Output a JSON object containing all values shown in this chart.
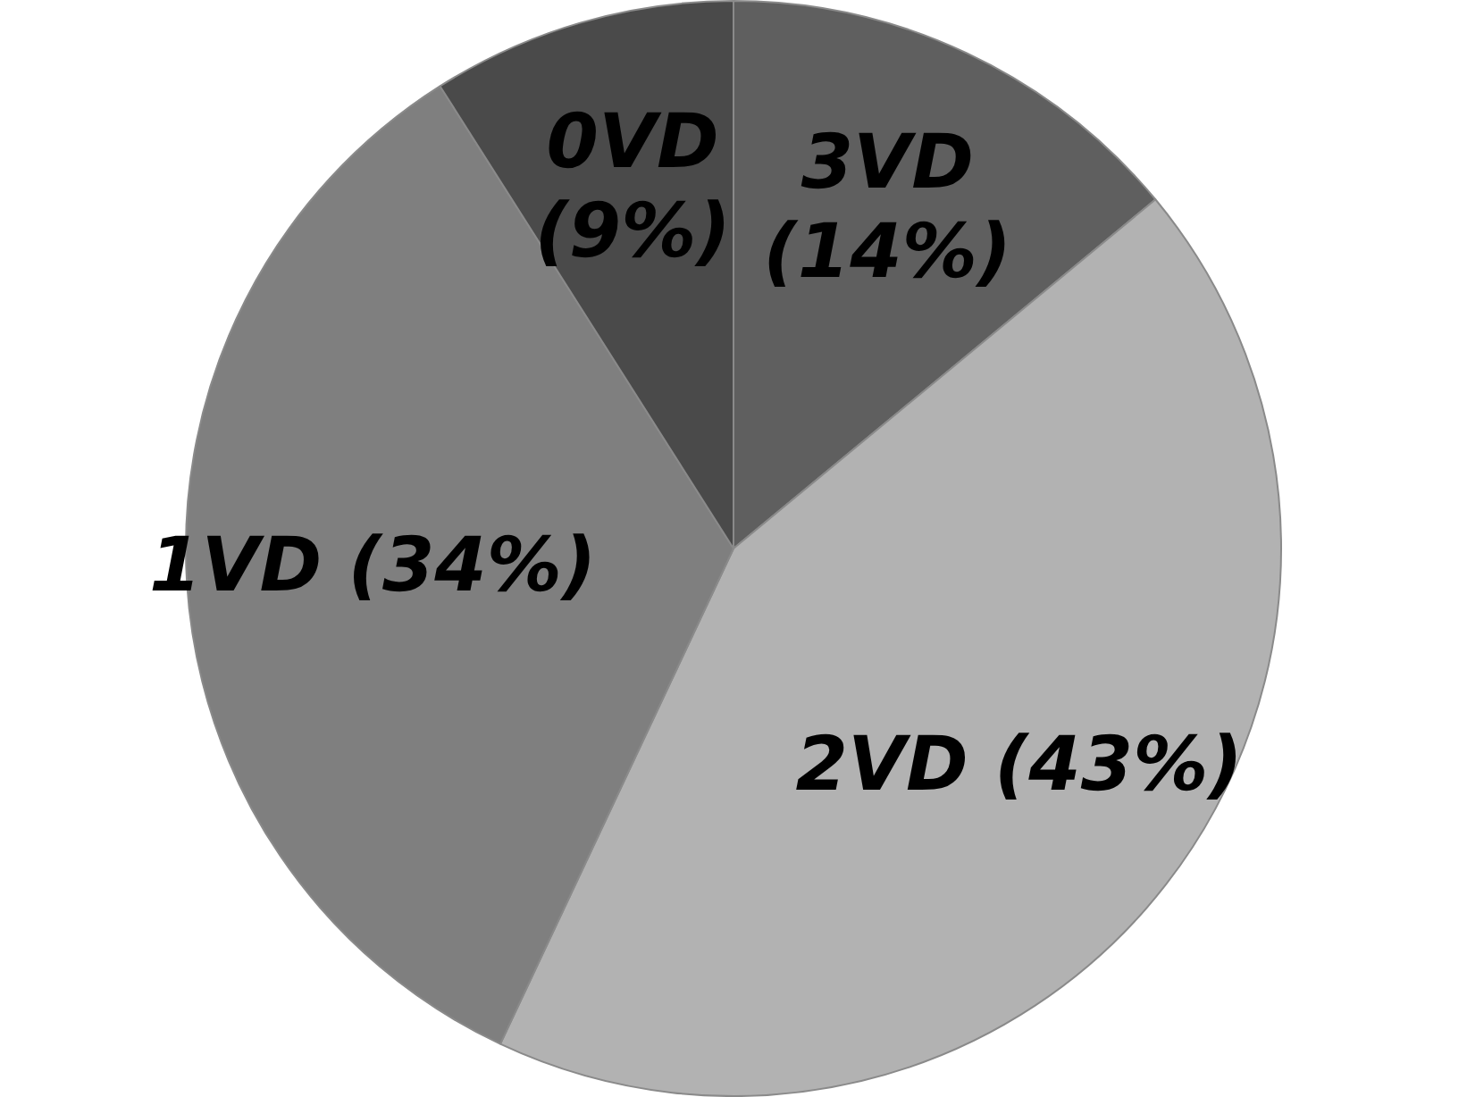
{
  "chart_data": {
    "type": "pie",
    "categories": [
      "3VD",
      "2VD",
      "1VD",
      "0VD"
    ],
    "values": [
      14,
      43,
      34,
      9
    ],
    "colors": [
      "#5f5f5f",
      "#b2b2b2",
      "#7f7f7f",
      "#4a4a4a"
    ],
    "value_labels": [
      "(14%)",
      "(43%)",
      "(34%)",
      "(9%)"
    ],
    "legend": false
  }
}
